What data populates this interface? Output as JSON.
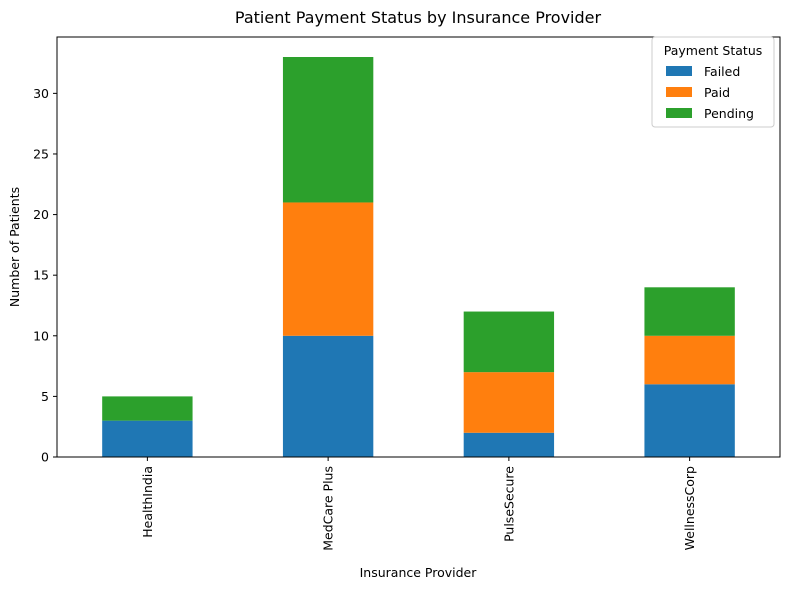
{
  "chart_data": {
    "type": "bar",
    "stacked": true,
    "title": "Patient Payment Status by Insurance Provider",
    "xlabel": "Insurance Provider",
    "ylabel": "Number of Patients",
    "categories": [
      "HealthIndia",
      "MedCare Plus",
      "PulseSecure",
      "WellnessCorp"
    ],
    "series": [
      {
        "name": "Failed",
        "values": [
          3,
          10,
          2,
          6
        ],
        "color": "#1f77b4"
      },
      {
        "name": "Paid",
        "values": [
          0,
          11,
          5,
          4
        ],
        "color": "#ff7f0e"
      },
      {
        "name": "Pending",
        "values": [
          2,
          12,
          5,
          4
        ],
        "color": "#2ca02c"
      }
    ],
    "ylim": [
      0,
      34.65
    ],
    "yticks": [
      0,
      5,
      10,
      15,
      20,
      25,
      30
    ],
    "legend": {
      "title": "Payment Status",
      "position": "top-right"
    },
    "grid": false
  }
}
